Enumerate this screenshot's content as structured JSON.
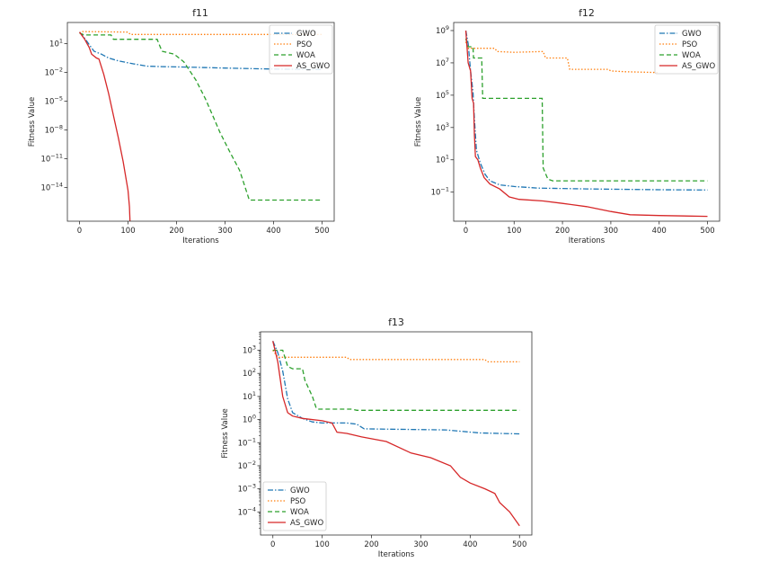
{
  "chart_data": [
    {
      "type": "line",
      "title": "f11",
      "xlabel": "Iterations",
      "ylabel": "Fitness Value",
      "yscale": "log",
      "xlim": [
        -25,
        525
      ],
      "ylim_log10": [
        -17.5,
        3.2
      ],
      "xticks": [
        0,
        100,
        200,
        300,
        400,
        500
      ],
      "yticks_exp": [
        1,
        -2,
        -5,
        -8,
        -11,
        -14
      ],
      "legend": "top-right",
      "series": [
        {
          "name": "GWO",
          "color": "#1f77b4",
          "dash": "dashdot",
          "points_log10": [
            [
              0,
              2.2
            ],
            [
              10,
              1.6
            ],
            [
              20,
              0.9
            ],
            [
              30,
              0.2
            ],
            [
              45,
              -0.1
            ],
            [
              60,
              -0.5
            ],
            [
              80,
              -0.8
            ],
            [
              110,
              -1.1
            ],
            [
              140,
              -1.35
            ],
            [
              170,
              -1.4
            ],
            [
              220,
              -1.45
            ],
            [
              300,
              -1.55
            ],
            [
              400,
              -1.65
            ],
            [
              500,
              -1.7
            ]
          ]
        },
        {
          "name": "PSO",
          "color": "#ff7f0e",
          "dash": "dotted",
          "points_log10": [
            [
              0,
              2.1
            ],
            [
              5,
              2.25
            ],
            [
              100,
              2.2
            ],
            [
              105,
              1.95
            ],
            [
              500,
              1.95
            ]
          ]
        },
        {
          "name": "WOA",
          "color": "#2ca02c",
          "dash": "dashed",
          "points_log10": [
            [
              0,
              2.1
            ],
            [
              10,
              1.9
            ],
            [
              65,
              1.9
            ],
            [
              70,
              1.45
            ],
            [
              160,
              1.45
            ],
            [
              170,
              0.2
            ],
            [
              195,
              -0.1
            ],
            [
              215,
              -0.9
            ],
            [
              240,
              -2.8
            ],
            [
              260,
              -4.8
            ],
            [
              290,
              -8.3
            ],
            [
              310,
              -10.3
            ],
            [
              330,
              -12.2
            ],
            [
              350,
              -15.3
            ],
            [
              500,
              -15.3
            ]
          ]
        },
        {
          "name": "AS_GWO",
          "color": "#d62728",
          "dash": "solid",
          "points_log10": [
            [
              0,
              2.2
            ],
            [
              10,
              1.5
            ],
            [
              20,
              0.6
            ],
            [
              25,
              -0.1
            ],
            [
              35,
              -0.5
            ],
            [
              40,
              -0.6
            ],
            [
              50,
              -2.2
            ],
            [
              60,
              -4.2
            ],
            [
              70,
              -6.5
            ],
            [
              80,
              -8.8
            ],
            [
              90,
              -11.3
            ],
            [
              100,
              -14.3
            ],
            [
              103,
              -16.0
            ],
            [
              104,
              -17.5
            ]
          ]
        }
      ]
    },
    {
      "type": "line",
      "title": "f12",
      "xlabel": "Iterations",
      "ylabel": "Fitness Value",
      "yscale": "log",
      "xlim": [
        -25,
        525
      ],
      "ylim_log10": [
        -2.8,
        9.5
      ],
      "xticks": [
        0,
        100,
        200,
        300,
        400,
        500
      ],
      "yticks_exp": [
        9,
        7,
        5,
        3,
        1,
        -1
      ],
      "legend": "top-right",
      "series": [
        {
          "name": "GWO",
          "color": "#1f77b4",
          "dash": "dashdot",
          "points_log10": [
            [
              0,
              9.0
            ],
            [
              5,
              8.2
            ],
            [
              10,
              6.5
            ],
            [
              15,
              5.2
            ],
            [
              18,
              3.5
            ],
            [
              22,
              1.6
            ],
            [
              30,
              0.8
            ],
            [
              40,
              0.1
            ],
            [
              50,
              -0.3
            ],
            [
              70,
              -0.55
            ],
            [
              100,
              -0.65
            ],
            [
              150,
              -0.75
            ],
            [
              250,
              -0.8
            ],
            [
              400,
              -0.85
            ],
            [
              500,
              -0.87
            ]
          ]
        },
        {
          "name": "PSO",
          "color": "#ff7f0e",
          "dash": "dotted",
          "points_log10": [
            [
              0,
              8.3
            ],
            [
              5,
              7.9
            ],
            [
              60,
              7.9
            ],
            [
              65,
              7.7
            ],
            [
              100,
              7.65
            ],
            [
              160,
              7.7
            ],
            [
              165,
              7.3
            ],
            [
              210,
              7.3
            ],
            [
              215,
              6.6
            ],
            [
              295,
              6.6
            ],
            [
              300,
              6.5
            ],
            [
              330,
              6.45
            ],
            [
              400,
              6.4
            ]
          ]
        },
        {
          "name": "WOA",
          "color": "#2ca02c",
          "dash": "dashed",
          "points_log10": [
            [
              0,
              8.5
            ],
            [
              5,
              8.0
            ],
            [
              15,
              8.0
            ],
            [
              16,
              7.3
            ],
            [
              33,
              7.3
            ],
            [
              35,
              4.8
            ],
            [
              158,
              4.8
            ],
            [
              160,
              0.5
            ],
            [
              170,
              -0.2
            ],
            [
              180,
              -0.3
            ],
            [
              500,
              -0.3
            ]
          ]
        },
        {
          "name": "AS_GWO",
          "color": "#d62728",
          "dash": "solid",
          "points_log10": [
            [
              0,
              9.0
            ],
            [
              5,
              7.0
            ],
            [
              10,
              6.5
            ],
            [
              13,
              4.8
            ],
            [
              16,
              4.5
            ],
            [
              18,
              2.5
            ],
            [
              20,
              1.2
            ],
            [
              25,
              1.0
            ],
            [
              30,
              0.5
            ],
            [
              38,
              -0.1
            ],
            [
              50,
              -0.5
            ],
            [
              70,
              -0.8
            ],
            [
              90,
              -1.3
            ],
            [
              110,
              -1.45
            ],
            [
              160,
              -1.55
            ],
            [
              200,
              -1.7
            ],
            [
              250,
              -1.9
            ],
            [
              300,
              -2.2
            ],
            [
              340,
              -2.4
            ],
            [
              400,
              -2.45
            ],
            [
              500,
              -2.5
            ]
          ]
        }
      ]
    },
    {
      "type": "line",
      "title": "f13",
      "xlabel": "Iterations",
      "ylabel": "Fitness Value",
      "yscale": "log",
      "xlim": [
        -25,
        525
      ],
      "ylim_log10": [
        -5.0,
        3.8
      ],
      "xticks": [
        0,
        100,
        200,
        300,
        400,
        500
      ],
      "yticks_exp": [
        3,
        2,
        1,
        0,
        -1,
        -2,
        -3,
        -4
      ],
      "legend": "bottom-left",
      "series": [
        {
          "name": "GWO",
          "color": "#1f77b4",
          "dash": "dashdot",
          "points_log10": [
            [
              0,
              3.4
            ],
            [
              10,
              2.9
            ],
            [
              20,
              2.1
            ],
            [
              30,
              0.9
            ],
            [
              40,
              0.3
            ],
            [
              60,
              0.05
            ],
            [
              80,
              -0.1
            ],
            [
              100,
              -0.15
            ],
            [
              150,
              -0.15
            ],
            [
              170,
              -0.2
            ],
            [
              185,
              -0.4
            ],
            [
              250,
              -0.42
            ],
            [
              350,
              -0.45
            ],
            [
              420,
              -0.58
            ],
            [
              500,
              -0.62
            ]
          ]
        },
        {
          "name": "PSO",
          "color": "#ff7f0e",
          "dash": "dotted",
          "points_log10": [
            [
              0,
              3.0
            ],
            [
              10,
              2.7
            ],
            [
              150,
              2.7
            ],
            [
              155,
              2.6
            ],
            [
              430,
              2.6
            ],
            [
              435,
              2.5
            ],
            [
              500,
              2.5
            ]
          ]
        },
        {
          "name": "WOA",
          "color": "#2ca02c",
          "dash": "dashed",
          "points_log10": [
            [
              0,
              3.0
            ],
            [
              20,
              3.0
            ],
            [
              30,
              2.3
            ],
            [
              40,
              2.2
            ],
            [
              60,
              2.2
            ],
            [
              65,
              1.7
            ],
            [
              80,
              1.0
            ],
            [
              88,
              0.5
            ],
            [
              92,
              0.45
            ],
            [
              160,
              0.45
            ],
            [
              170,
              0.4
            ],
            [
              500,
              0.4
            ]
          ]
        },
        {
          "name": "AS_GWO",
          "color": "#d62728",
          "dash": "solid",
          "points_log10": [
            [
              0,
              3.4
            ],
            [
              10,
              2.5
            ],
            [
              20,
              1.0
            ],
            [
              30,
              0.3
            ],
            [
              40,
              0.15
            ],
            [
              60,
              0.05
            ],
            [
              100,
              -0.05
            ],
            [
              120,
              -0.15
            ],
            [
              130,
              -0.55
            ],
            [
              150,
              -0.6
            ],
            [
              180,
              -0.75
            ],
            [
              230,
              -0.95
            ],
            [
              280,
              -1.45
            ],
            [
              320,
              -1.65
            ],
            [
              360,
              -2.0
            ],
            [
              380,
              -2.5
            ],
            [
              400,
              -2.75
            ],
            [
              430,
              -3.0
            ],
            [
              450,
              -3.2
            ],
            [
              460,
              -3.6
            ],
            [
              480,
              -4.0
            ],
            [
              500,
              -4.6
            ]
          ]
        }
      ]
    }
  ]
}
